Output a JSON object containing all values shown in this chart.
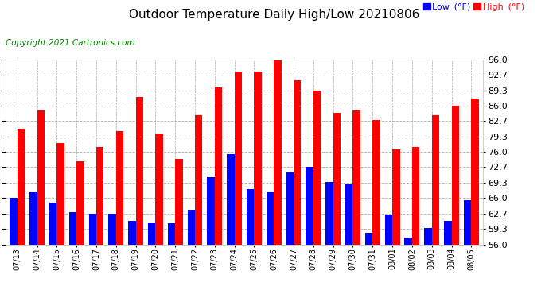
{
  "title": "Outdoor Temperature Daily High/Low 20210806",
  "copyright": "Copyright 2021 Cartronics.com",
  "legend_low": "Low  (°F)",
  "legend_high": "High  (°F)",
  "ylim": [
    56.0,
    96.0
  ],
  "yticks": [
    56.0,
    59.3,
    62.7,
    66.0,
    69.3,
    72.7,
    76.0,
    79.3,
    82.7,
    86.0,
    89.3,
    92.7,
    96.0
  ],
  "dates": [
    "07/13",
    "07/14",
    "07/15",
    "07/16",
    "07/17",
    "07/18",
    "07/19",
    "07/20",
    "07/21",
    "07/22",
    "07/23",
    "07/24",
    "07/25",
    "07/26",
    "07/27",
    "07/28",
    "07/29",
    "07/30",
    "07/31",
    "08/01",
    "08/02",
    "08/03",
    "08/04",
    "08/05"
  ],
  "high_values": [
    81.0,
    85.0,
    78.0,
    74.0,
    77.0,
    80.5,
    88.0,
    80.0,
    74.5,
    84.0,
    90.0,
    93.5,
    93.5,
    96.0,
    91.5,
    89.3,
    84.5,
    85.0,
    83.0,
    76.5,
    77.0,
    84.0,
    86.0,
    87.5
  ],
  "low_values": [
    66.0,
    67.5,
    65.0,
    63.0,
    62.7,
    62.7,
    61.0,
    60.8,
    60.5,
    63.5,
    70.5,
    75.5,
    68.0,
    67.5,
    71.5,
    72.7,
    69.5,
    69.0,
    58.5,
    62.5,
    57.5,
    59.5,
    61.0,
    65.5
  ],
  "high_color": "#ff0000",
  "low_color": "#0000ff",
  "background_color": "#ffffff",
  "grid_color": "#aaaaaa",
  "title_fontsize": 11,
  "copyright_fontsize": 7.5,
  "legend_fontsize": 8,
  "bar_width": 0.38
}
